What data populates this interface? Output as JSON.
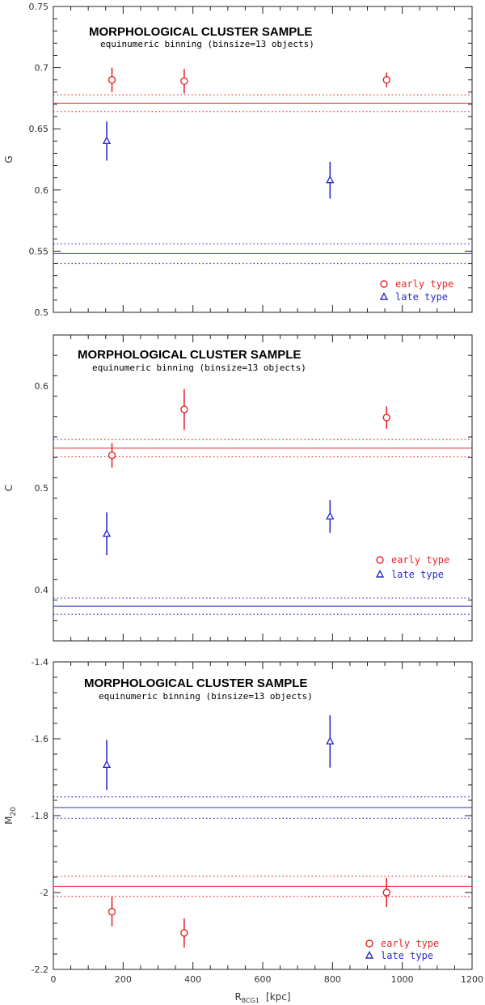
{
  "chart_data": [
    {
      "type": "scatter",
      "title": "MORPHOLOGICAL CLUSTER SAMPLE",
      "subtitle": "equinumeric binning (binsize=13 objects)",
      "ylabel": "G",
      "xlim": [
        0,
        1200
      ],
      "ylim": [
        0.5,
        0.75
      ],
      "yticks": [
        0.5,
        0.55,
        0.6,
        0.65,
        0.7,
        0.75
      ],
      "ytick_labels": [
        "0.5",
        "0.55",
        "0.6",
        "0.65",
        "0.7",
        "0.75"
      ],
      "series": [
        {
          "name": "early type",
          "marker": "circle",
          "color": "#e8262b",
          "points": [
            {
              "x": 168,
              "y": 0.69,
              "err": 0.01
            },
            {
              "x": 375,
              "y": 0.689,
              "err": 0.01
            },
            {
              "x": 955,
              "y": 0.69,
              "err": 0.006
            }
          ],
          "mean": 0.671,
          "mean_err": 0.0068
        },
        {
          "name": "late type",
          "marker": "triangle",
          "color": "#2b2fc4",
          "points": [
            {
              "x": 153,
              "y": 0.64,
              "err": 0.016
            },
            {
              "x": 793,
              "y": 0.608,
              "err": 0.015
            }
          ],
          "mean": 0.548,
          "mean_err": 0.008
        }
      ]
    },
    {
      "type": "scatter",
      "title": "MORPHOLOGICAL CLUSTER SAMPLE",
      "subtitle": "equinumeric binning (binsize=13 objects)",
      "ylabel": "C",
      "xlim": [
        0,
        1200
      ],
      "ylim": [
        0.35,
        0.65
      ],
      "yticks": [
        0.4,
        0.5,
        0.6
      ],
      "ytick_labels": [
        "0.4",
        "0.5",
        "0.6"
      ],
      "series": [
        {
          "name": "early type",
          "marker": "circle",
          "color": "#e8262b",
          "points": [
            {
              "x": 168,
              "y": 0.532,
              "err": 0.012
            },
            {
              "x": 375,
              "y": 0.577,
              "err": 0.02
            },
            {
              "x": 955,
              "y": 0.569,
              "err": 0.011
            }
          ],
          "mean": 0.539,
          "mean_err": 0.0085
        },
        {
          "name": "late type",
          "marker": "triangle",
          "color": "#2b2fc4",
          "points": [
            {
              "x": 153,
              "y": 0.455,
              "err": 0.021
            },
            {
              "x": 793,
              "y": 0.472,
              "err": 0.016
            }
          ],
          "mean": 0.384,
          "mean_err": 0.008
        }
      ]
    },
    {
      "type": "scatter",
      "title": "MORPHOLOGICAL CLUSTER SAMPLE",
      "subtitle": "equinumeric binning (binsize=13 objects)",
      "ylabel": "M",
      "ylabel_sub": "20",
      "xlabel": "R",
      "xlabel_sub": "BCG1",
      "xlabel_unit": "[kpc]",
      "xlim": [
        0,
        1200
      ],
      "ylim": [
        -2.2,
        -1.4
      ],
      "yticks": [
        -2.2,
        -2.0,
        -1.8,
        -1.6,
        -1.4
      ],
      "ytick_labels": [
        "-2.2",
        "-2",
        "-1.8",
        "-1.6",
        "-1.4"
      ],
      "xticks": [
        0,
        200,
        400,
        600,
        800,
        1000,
        1200
      ],
      "xtick_labels": [
        "0",
        "200",
        "400",
        "600",
        "800",
        "1000",
        "1200"
      ],
      "series": [
        {
          "name": "early type",
          "marker": "circle",
          "color": "#e8262b",
          "points": [
            {
              "x": 168,
              "y": -2.05,
              "err": 0.038
            },
            {
              "x": 375,
              "y": -2.105,
              "err": 0.038
            },
            {
              "x": 955,
              "y": -2.0,
              "err": 0.038
            }
          ],
          "mean": -1.984,
          "mean_err": 0.026
        },
        {
          "name": "late type",
          "marker": "triangle",
          "color": "#2b2fc4",
          "points": [
            {
              "x": 153,
              "y": -1.668,
              "err": 0.065
            },
            {
              "x": 793,
              "y": -1.607,
              "err": 0.068
            }
          ],
          "mean": -1.779,
          "mean_err": 0.028
        }
      ]
    }
  ]
}
